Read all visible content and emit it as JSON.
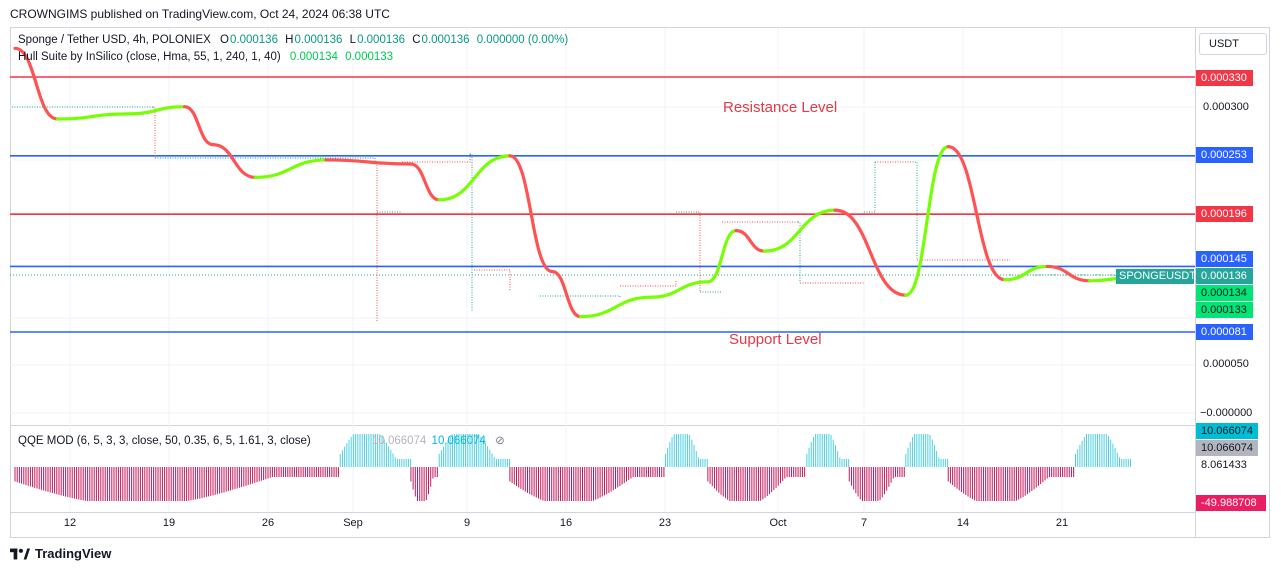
{
  "caption": "CROWNGIMS published on TradingView.com, Oct 24, 2024 06:38 UTC",
  "legend": {
    "symbol": "Sponge / Tether USD, 4h, POLONIEX",
    "o_label": "O",
    "o": "0.000136",
    "h_label": "H",
    "h": "0.000136",
    "l_label": "L",
    "l": "0.000136",
    "c_label": "C",
    "c": "0.000136",
    "change": "0.000000 (0.00%)",
    "hull_label": "Hull Suite by InSilico (close, Hma, 55, 1, 240, 1, 40)",
    "hull_v1": "0.000134",
    "hull_v2": "0.000133"
  },
  "qqe_legend": {
    "label": "QQE MOD (6, 5, 3, 3, close, 50, 0.35, 6, 5, 1.61, 3, close)",
    "v1": "10.066074",
    "v2": "10.066074",
    "icon": "eye-slash-icon"
  },
  "currency": "USDT",
  "price_ticks": [
    "0.000300",
    "0.000050",
    "−0.000000"
  ],
  "badges": [
    {
      "text": "0.000330",
      "color": "#f23645"
    },
    {
      "text": "0.000253",
      "color": "#2962ff"
    },
    {
      "text": "0.000196",
      "color": "#f23645"
    },
    {
      "text": "0.000145",
      "color": "#2962ff"
    },
    {
      "text": "0.000136",
      "color": "#26a69a"
    },
    {
      "text": "0.000134",
      "color": "#00e676"
    },
    {
      "text": "0.000133",
      "color": "#00e676"
    },
    {
      "text": "0.000081",
      "color": "#2962ff"
    }
  ],
  "qqe_badges": [
    {
      "text": "10.066074",
      "color": "#00bcd4",
      "fg": "#131722"
    },
    {
      "text": "10.066074",
      "color": "#b2b5be",
      "fg": "#131722"
    },
    {
      "text": "8.061433",
      "color": "#ffffff",
      "fg": "#131722"
    },
    {
      "text": "-49.988708",
      "color": "#e91e63",
      "fg": "#ffffff"
    }
  ],
  "symbol_badge": "SPONGEUSDT",
  "time_ticks": [
    "12",
    "19",
    "26",
    "Sep",
    "9",
    "16",
    "23",
    "Oct",
    "7",
    "14",
    "21"
  ],
  "annotations": {
    "resistance": "Resistance Level",
    "support": "Support Level"
  },
  "brand": "TradingView",
  "chart_data": {
    "type": "line",
    "title": "Sponge / Tether USD, 4h, POLONIEX",
    "ylabel": "USDT",
    "ylim": [
      0.0,
      0.00034
    ],
    "horizontal_levels": [
      {
        "value": 0.00033,
        "color": "#f23645"
      },
      {
        "value": 0.000253,
        "color": "#2962ff"
      },
      {
        "value": 0.000196,
        "color": "#f23645"
      },
      {
        "value": 0.000145,
        "color": "#2962ff"
      },
      {
        "value": 8.1e-05,
        "color": "#2962ff"
      }
    ],
    "hull_series": [
      {
        "t": "Aug 5",
        "v": 0.000358
      },
      {
        "t": "Aug 8",
        "v": 0.000289
      },
      {
        "t": "Aug 13",
        "v": 0.000294
      },
      {
        "t": "Aug 17",
        "v": 0.000301
      },
      {
        "t": "Aug 19",
        "v": 0.000264
      },
      {
        "t": "Aug 22",
        "v": 0.000232
      },
      {
        "t": "Aug 27",
        "v": 0.000249
      },
      {
        "t": "Sep 2",
        "v": 0.000245
      },
      {
        "t": "Sep 4",
        "v": 0.00021
      },
      {
        "t": "Sep 9",
        "v": 0.000253
      },
      {
        "t": "Sep 12",
        "v": 0.00014
      },
      {
        "t": "Sep 14",
        "v": 9.6e-05
      },
      {
        "t": "Sep 19",
        "v": 0.000115
      },
      {
        "t": "Sep 23",
        "v": 0.00013
      },
      {
        "t": "Sep 25",
        "v": 0.00018
      },
      {
        "t": "Sep 27",
        "v": 0.00016
      },
      {
        "t": "Oct 2",
        "v": 0.0002
      },
      {
        "t": "Oct 7",
        "v": 0.000117
      },
      {
        "t": "Oct 10",
        "v": 0.000262
      },
      {
        "t": "Oct 14",
        "v": 0.000132
      },
      {
        "t": "Oct 17",
        "v": 0.000145
      },
      {
        "t": "Oct 20",
        "v": 0.000131
      },
      {
        "t": "Oct 23",
        "v": 0.000134
      }
    ],
    "qqe": {
      "positive_blocks": [
        [
          "Aug 28",
          "Sep 2"
        ],
        [
          "Sep 4",
          "Sep 9"
        ],
        [
          "Sep 20",
          "Sep 23"
        ],
        [
          "Sep 30",
          "Oct 3"
        ],
        [
          "Oct 7",
          "Oct 10"
        ],
        [
          "Oct 19",
          "Oct 23"
        ]
      ],
      "negative_blocks": [
        [
          "Aug 5",
          "Aug 28"
        ],
        [
          "Sep 2",
          "Sep 4"
        ],
        [
          "Sep 9",
          "Sep 20"
        ],
        [
          "Sep 23",
          "Sep 30"
        ],
        [
          "Oct 3",
          "Oct 7"
        ],
        [
          "Oct 10",
          "Oct 19"
        ]
      ]
    }
  }
}
